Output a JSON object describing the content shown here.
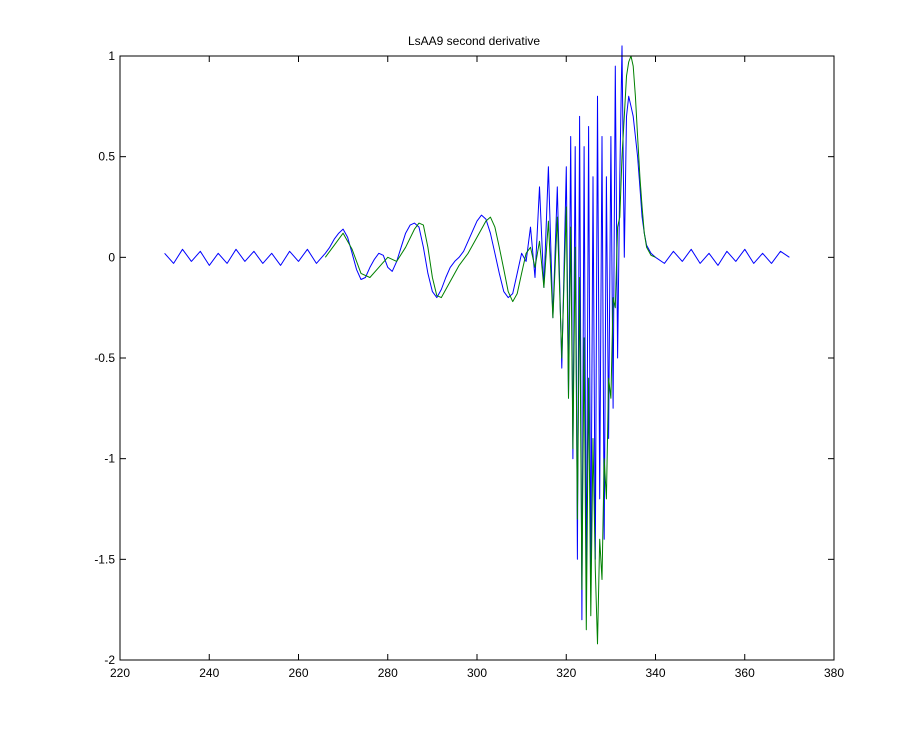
{
  "chart_data": {
    "type": "line",
    "title": "LsAA9 second derivative",
    "xlabel": "",
    "ylabel": "",
    "xlim": [
      220,
      380
    ],
    "ylim": [
      -2,
      1
    ],
    "x_ticks": [
      "220",
      "240",
      "260",
      "280",
      "300",
      "320",
      "340",
      "360",
      "380"
    ],
    "y_ticks": [
      "1",
      "0.5",
      "0",
      "-0.5",
      "-1",
      "-1.5",
      "-2"
    ],
    "x_tick_values": [
      220,
      240,
      260,
      280,
      300,
      320,
      340,
      360,
      380
    ],
    "y_tick_values": [
      1,
      0.5,
      0,
      -0.5,
      -1,
      -1.5,
      -2
    ],
    "grid": false,
    "legend": "none",
    "series": [
      {
        "color": "#0000ff",
        "x": [
          230.0,
          232.0,
          234.0,
          236.0,
          238.0,
          240.0,
          242.0,
          244.0,
          246.0,
          248.0,
          250.0,
          252.0,
          254.0,
          256.0,
          258.0,
          260.0,
          262.0,
          264.0,
          266.0,
          267.0,
          268.0,
          269.0,
          270.0,
          271.0,
          272.0,
          273.0,
          274.0,
          275.0,
          276.0,
          277.0,
          278.0,
          279.0,
          280.0,
          281.0,
          282.0,
          283.0,
          284.0,
          285.0,
          286.0,
          287.0,
          288.0,
          289.0,
          290.0,
          291.0,
          292.0,
          293.0,
          294.0,
          295.0,
          296.0,
          297.0,
          298.0,
          299.0,
          300.0,
          301.0,
          302.0,
          303.0,
          304.0,
          305.0,
          306.0,
          307.0,
          308.0,
          309.0,
          310.0,
          311.0,
          312.0,
          313.0,
          314.0,
          315.0,
          316.0,
          317.0,
          318.0,
          319.0,
          320.0,
          320.5,
          321.0,
          321.5,
          322.0,
          322.5,
          323.0,
          323.5,
          324.0,
          324.5,
          325.0,
          325.5,
          326.0,
          326.5,
          327.0,
          327.5,
          328.0,
          328.5,
          329.0,
          329.5,
          330.0,
          330.5,
          331.0,
          331.5,
          332.0,
          332.5,
          333.0,
          333.5,
          334.0,
          334.5,
          335.0,
          335.5,
          336.0,
          336.5,
          337.0,
          337.5,
          338.0,
          339.0,
          340.0,
          342.0,
          344.0,
          346.0,
          348.0,
          350.0,
          352.0,
          354.0,
          356.0,
          358.0,
          360.0,
          362.0,
          364.0,
          366.0,
          368.0,
          370.0
        ],
        "y": [
          0.02,
          -0.03,
          0.04,
          -0.02,
          0.03,
          -0.04,
          0.02,
          -0.03,
          0.04,
          -0.02,
          0.03,
          -0.03,
          0.02,
          -0.04,
          0.03,
          -0.02,
          0.04,
          -0.03,
          0.02,
          0.05,
          0.09,
          0.12,
          0.14,
          0.1,
          0.02,
          -0.06,
          -0.11,
          -0.1,
          -0.05,
          -0.01,
          0.02,
          0.01,
          -0.05,
          -0.07,
          -0.02,
          0.05,
          0.12,
          0.16,
          0.17,
          0.15,
          0.05,
          -0.08,
          -0.17,
          -0.2,
          -0.16,
          -0.1,
          -0.05,
          -0.02,
          0.0,
          0.03,
          0.08,
          0.13,
          0.18,
          0.21,
          0.19,
          0.12,
          0.02,
          -0.08,
          -0.17,
          -0.2,
          -0.18,
          -0.08,
          0.02,
          -0.02,
          0.15,
          -0.1,
          0.35,
          -0.15,
          0.45,
          -0.3,
          0.35,
          -0.55,
          0.45,
          -0.7,
          0.6,
          -1.0,
          0.55,
          -1.5,
          0.7,
          -1.8,
          0.55,
          -1.7,
          0.65,
          -1.6,
          0.4,
          -1.5,
          0.8,
          -1.2,
          0.6,
          -1.4,
          0.4,
          -0.9,
          0.6,
          -0.75,
          0.95,
          -0.5,
          0.4,
          1.05,
          0.0,
          0.7,
          0.8,
          0.75,
          0.7,
          0.6,
          0.5,
          0.35,
          0.2,
          0.12,
          0.06,
          0.02,
          0.0,
          -0.03,
          0.03,
          -0.02,
          0.04,
          -0.03,
          0.02,
          -0.04,
          0.03,
          -0.02,
          0.04,
          -0.03,
          0.02,
          -0.03,
          0.03,
          0.0
        ]
      },
      {
        "color": "#008000",
        "x": [
          266.0,
          268.0,
          270.0,
          272.0,
          274.0,
          276.0,
          278.0,
          280.0,
          282.0,
          284.0,
          286.0,
          287.0,
          288.0,
          289.0,
          290.0,
          291.0,
          292.0,
          294.0,
          296.0,
          298.0,
          300.0,
          302.0,
          303.0,
          304.0,
          305.0,
          306.0,
          307.0,
          308.0,
          309.0,
          310.0,
          311.0,
          312.0,
          313.0,
          314.0,
          315.0,
          316.0,
          317.0,
          318.0,
          319.0,
          320.0,
          320.5,
          321.0,
          321.5,
          322.0,
          322.5,
          323.0,
          323.5,
          324.0,
          324.5,
          325.0,
          325.5,
          326.0,
          326.5,
          327.0,
          327.5,
          328.0,
          328.5,
          329.0,
          329.5,
          330.0,
          330.5,
          331.0,
          331.5,
          332.0,
          332.5,
          333.0,
          333.5,
          334.0,
          334.5,
          335.0,
          335.5,
          336.0,
          336.5,
          337.0,
          337.5,
          338.0,
          339.0,
          340.0
        ],
        "y": [
          0.0,
          0.06,
          0.12,
          0.04,
          -0.08,
          -0.1,
          -0.05,
          0.0,
          -0.02,
          0.05,
          0.14,
          0.17,
          0.16,
          0.05,
          -0.1,
          -0.19,
          -0.2,
          -0.12,
          -0.04,
          0.02,
          0.1,
          0.18,
          0.2,
          0.15,
          0.05,
          -0.06,
          -0.17,
          -0.22,
          -0.18,
          -0.08,
          0.02,
          0.05,
          -0.05,
          0.08,
          -0.15,
          0.18,
          -0.3,
          0.2,
          -0.5,
          0.25,
          -0.7,
          0.15,
          -0.95,
          0.05,
          -1.3,
          -0.1,
          -1.65,
          -0.4,
          -1.85,
          -0.6,
          -1.78,
          -0.9,
          -1.55,
          -1.92,
          -1.4,
          -1.6,
          -1.0,
          -1.2,
          -0.6,
          -0.7,
          -0.2,
          -0.25,
          0.15,
          0.2,
          0.5,
          0.7,
          0.9,
          0.97,
          1.0,
          0.95,
          0.8,
          0.6,
          0.4,
          0.25,
          0.12,
          0.05,
          0.01,
          0.0
        ]
      }
    ]
  }
}
